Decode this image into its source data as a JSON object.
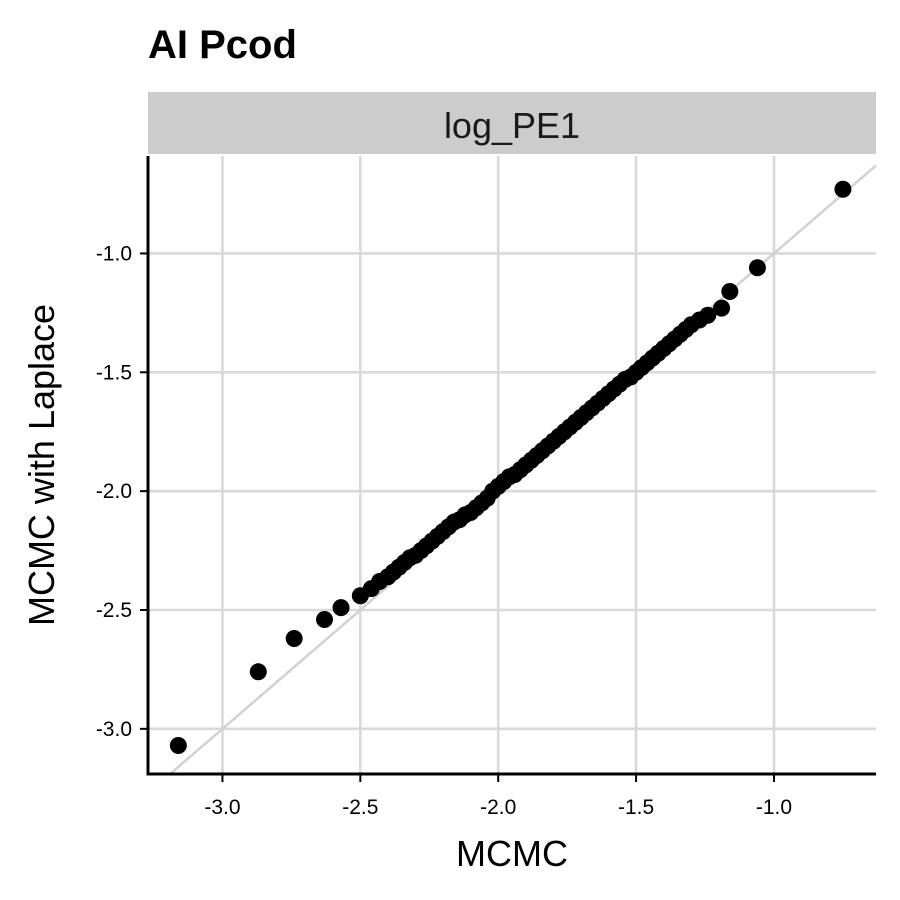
{
  "chart_data": {
    "type": "scatter",
    "title": "AI Pcod",
    "facet_label": "log_PE1",
    "xlabel": "MCMC",
    "ylabel": "MCMC with Laplace",
    "xlim": [
      -3.27,
      -0.63
    ],
    "ylim": [
      -3.19,
      -0.59
    ],
    "x_ticks": [
      -3.0,
      -2.5,
      -2.0,
      -1.5,
      -1.0
    ],
    "x_tick_labels": [
      "-3.0",
      "-2.5",
      "-2.0",
      "-1.5",
      "-1.0"
    ],
    "y_ticks": [
      -3.0,
      -2.5,
      -2.0,
      -1.5,
      -1.0
    ],
    "y_tick_labels": [
      "-3.0",
      "-2.5",
      "-2.0",
      "-1.5",
      "-1.0"
    ],
    "reference_line": {
      "slope": 1,
      "intercept": 0,
      "color": "#d3d3d3"
    },
    "grid": true,
    "point_color": "#000000",
    "x": [
      -3.16,
      -2.87,
      -2.74,
      -2.63,
      -2.57,
      -2.5,
      -2.46,
      -2.43,
      -2.4,
      -2.38,
      -2.36,
      -2.34,
      -2.32,
      -2.3,
      -2.28,
      -2.26,
      -2.24,
      -2.22,
      -2.2,
      -2.18,
      -2.16,
      -2.14,
      -2.12,
      -2.1,
      -2.08,
      -2.06,
      -2.04,
      -2.02,
      -2.0,
      -1.98,
      -1.96,
      -1.94,
      -1.92,
      -1.9,
      -1.88,
      -1.86,
      -1.84,
      -1.82,
      -1.8,
      -1.78,
      -1.76,
      -1.74,
      -1.72,
      -1.7,
      -1.68,
      -1.66,
      -1.64,
      -1.62,
      -1.6,
      -1.58,
      -1.56,
      -1.54,
      -1.52,
      -1.5,
      -1.48,
      -1.46,
      -1.44,
      -1.42,
      -1.4,
      -1.38,
      -1.36,
      -1.34,
      -1.32,
      -1.3,
      -1.27,
      -1.24,
      -1.19,
      -1.16,
      -1.06,
      -0.75
    ],
    "y": [
      -3.07,
      -2.76,
      -2.62,
      -2.54,
      -2.49,
      -2.44,
      -2.41,
      -2.38,
      -2.36,
      -2.34,
      -2.32,
      -2.3,
      -2.28,
      -2.27,
      -2.25,
      -2.23,
      -2.21,
      -2.19,
      -2.17,
      -2.15,
      -2.13,
      -2.12,
      -2.1,
      -2.09,
      -2.07,
      -2.05,
      -2.03,
      -2.0,
      -1.98,
      -1.96,
      -1.94,
      -1.93,
      -1.91,
      -1.89,
      -1.87,
      -1.85,
      -1.83,
      -1.81,
      -1.79,
      -1.77,
      -1.75,
      -1.73,
      -1.71,
      -1.69,
      -1.67,
      -1.65,
      -1.63,
      -1.61,
      -1.59,
      -1.57,
      -1.55,
      -1.53,
      -1.52,
      -1.5,
      -1.48,
      -1.46,
      -1.44,
      -1.42,
      -1.4,
      -1.38,
      -1.36,
      -1.34,
      -1.32,
      -1.3,
      -1.28,
      -1.26,
      -1.23,
      -1.16,
      -1.06,
      -0.73
    ]
  }
}
